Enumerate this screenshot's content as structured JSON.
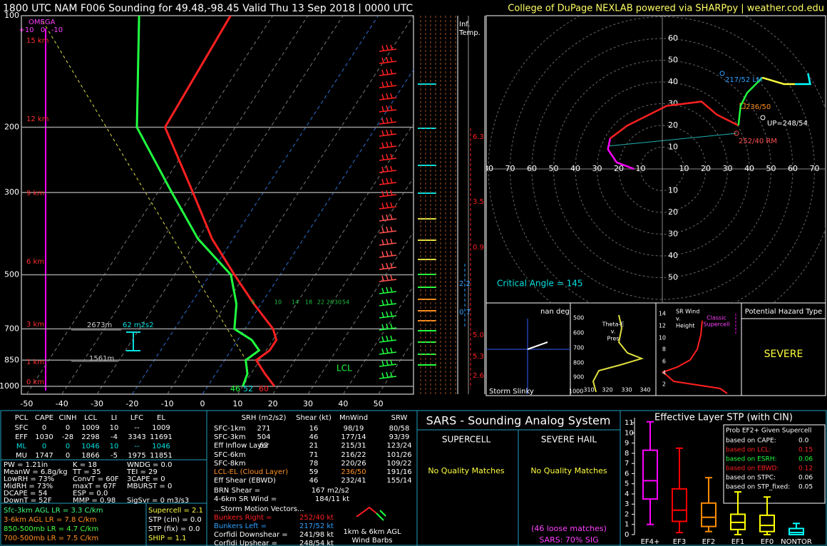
{
  "header": {
    "title": "1800 UTC NAM F006 Sounding for 49.48,-98.45 Valid  Thu 13 Sep 2018 | 0000 UTC",
    "credit": "College of DuPage NEXLAB powered via SHARPpy | weather.cod.edu"
  },
  "chart_data": [
    {
      "type": "skewt",
      "xlim": [
        -51.5,
        60
      ],
      "xticks": [
        -50,
        -40,
        -30,
        -20,
        -10,
        0,
        10,
        20,
        30,
        40,
        50
      ],
      "ylim": [
        100,
        1050
      ],
      "yticks": [
        100,
        200,
        300,
        500,
        700,
        850,
        1000
      ],
      "log_y": true,
      "pressure": [
        100,
        200,
        300,
        400,
        500,
        600,
        700,
        750,
        800,
        850,
        925,
        1000
      ],
      "series": [
        {
          "color": "#ff2020",
          "values": [
            -62,
            -60,
            -40,
            -26,
            -13,
            -2,
            8,
            11,
            11,
            9,
            14,
            19
          ]
        },
        {
          "color": "#20ff40",
          "values": [
            -88,
            -68,
            -46,
            -30,
            -14,
            -7,
            -3,
            4,
            8,
            6,
            9,
            10
          ]
        }
      ]
    },
    {
      "type": "hodograph",
      "rings": [
        10,
        20,
        30,
        40,
        50,
        60,
        70,
        80
      ],
      "segments": [
        {
          "color": "#ff00ff",
          "u": [
            -13,
            -21,
            -25,
            -24
          ],
          "v": [
            0,
            3,
            9,
            14
          ]
        },
        {
          "color": "#ff2020",
          "u": [
            -24,
            -16,
            2,
            18,
            25,
            35
          ],
          "v": [
            14,
            20,
            29,
            31,
            25,
            20
          ]
        },
        {
          "color": "#20ff40",
          "u": [
            35,
            36,
            39,
            46
          ],
          "v": [
            20,
            29,
            35,
            42
          ]
        },
        {
          "color": "#ffff40",
          "u": [
            46,
            56,
            61
          ],
          "v": [
            42,
            39,
            39
          ]
        },
        {
          "color": "#00ffff",
          "u": [
            61,
            68,
            67
          ],
          "v": [
            39,
            39,
            44
          ]
        }
      ]
    },
    {
      "type": "box",
      "title": "Effective Layer STP (with CIN)",
      "categories": [
        "EF4+",
        "EF3",
        "EF2",
        "EF1",
        "EF0",
        "NONTOR"
      ],
      "ylim": [
        0,
        11.5
      ],
      "yticks": [
        0,
        1,
        2,
        3,
        4,
        5,
        6,
        7,
        8,
        9,
        10,
        11
      ],
      "low": [
        1,
        0.2,
        0.3,
        0,
        0,
        0
      ],
      "q1": [
        3.5,
        1.3,
        0.8,
        0.5,
        0.3,
        0
      ],
      "median": [
        5.3,
        2.4,
        1.7,
        1.2,
        0.9,
        0.2
      ],
      "q3": [
        8.3,
        4.5,
        3.1,
        2,
        1.9,
        0.6
      ],
      "high": [
        11.1,
        8.5,
        5.6,
        4.2,
        3.7,
        1.1
      ],
      "colors": [
        "#ff00ff",
        "#ff0000",
        "#ff8c00",
        "#ffff00",
        "#ffff00",
        "#00ffff"
      ]
    }
  ],
  "skewt_labels": {
    "omega": [
      "OMEGA",
      "+10",
      "0",
      "-10"
    ],
    "heights": [
      "15 km",
      "12 km",
      "9 km",
      "6 km",
      "3 km",
      "1 km",
      "0 km"
    ],
    "inferred_temp": {
      "title": [
        "Inf.",
        "Temp."
      ],
      "values": [
        "6.3",
        "3.5",
        "0.9",
        "2.2",
        "0.7",
        "5.0",
        "5.3",
        "2.6"
      ]
    },
    "mixing_ratio": [
      "6",
      "10",
      "14",
      "18",
      "22",
      "26",
      "30",
      "54"
    ],
    "effective_layer": [
      "2673m",
      "62 m2s2",
      "1561m"
    ],
    "lcl": "LCL",
    "surface": [
      "46",
      "52",
      "60"
    ],
    "critical_angle": "Critical Angle = 145",
    "storm_motion": [
      "217/52 LM",
      "236/50",
      "UP=248/54",
      "252/40 RM"
    ]
  },
  "insets": {
    "slinky": {
      "angle": "nan deg",
      "title": "Storm Slinky"
    },
    "theta_e": {
      "title": [
        "Theta-E",
        "v.",
        "Pres"
      ],
      "pressure_labels": [
        "500",
        "600",
        "700",
        "800",
        "900",
        "1000"
      ],
      "theta_labels": [
        "310",
        "320",
        "330",
        "340"
      ]
    },
    "sr_wind": {
      "title": [
        "SR Wind",
        "v.",
        "Height"
      ],
      "height_labels": [
        "14",
        "12",
        "10",
        "8",
        "6",
        "4",
        "2"
      ],
      "note": [
        "Classic",
        "Supercell"
      ]
    },
    "hazard": {
      "title": "Potential Hazard Type",
      "value": "SEVERE"
    }
  },
  "thermo": {
    "header": [
      "PCL",
      "CAPE",
      "CINH",
      "LCL",
      "LI",
      "LFC",
      "EL"
    ],
    "rows": [
      [
        "SFC",
        "0",
        "0",
        "1009",
        "10",
        "--",
        "1009"
      ],
      [
        "EFF",
        "1030",
        "-28",
        "2298",
        "-4",
        "3343",
        "11691"
      ],
      [
        "ML",
        "0",
        "0",
        "1046",
        "10",
        "--",
        "1046"
      ],
      [
        "MU",
        "1747",
        "0",
        "1866",
        "-5",
        "1975",
        "11851"
      ]
    ],
    "indices": [
      [
        "PW = 1.21in",
        "K = 18",
        "WNDG = 0.0"
      ],
      [
        "MeanW = 6.8g/kg",
        "TT = 35",
        "TEI = 29"
      ],
      [
        "LowRH = 73%",
        "ConvT = 60F",
        "3CAPE = 0"
      ],
      [
        "MidRH = 73%",
        "maxT = 67F",
        "MBURST = 0"
      ],
      [
        "DCAPE = 54",
        "ESP = 0.0"
      ],
      [
        "DownT = 52F",
        "MMP = 0.98",
        "SigSvr = 0 m3/s3"
      ]
    ],
    "lapse_rates": [
      "Sfc-3km AGL LR = 3.3 C/km",
      "3-6km AGL LR = 7.8 C/km",
      "850-500mb LR = 4.7 C/km",
      "700-500mb LR = 7.5 C/km"
    ],
    "composites": [
      "Supercell = 2.1",
      "STP (cin) = 0.0",
      "STP (fix) = 0.0",
      "SHIP = 1.1"
    ]
  },
  "kinematics": {
    "header": [
      "SRH (m2/s2)",
      "Shear (kt)",
      "MnWind",
      "SRW"
    ],
    "rows": [
      [
        "SFC-1km",
        "271",
        "16",
        "98/19",
        "80/58"
      ],
      [
        "SFC-3km",
        "504",
        "46",
        "177/14",
        "93/39"
      ],
      [
        "Eff Inflow Layer",
        "62",
        "21",
        "215/31",
        "123/24"
      ],
      [
        "SFC-6km",
        null,
        "71",
        "216/22",
        "101/26"
      ],
      [
        "SFC-8km",
        null,
        "78",
        "220/26",
        "109/22"
      ],
      [
        "LCL-EL (Cloud Layer)",
        null,
        "59",
        "236/50",
        "191/16"
      ],
      [
        "Eff Shear (EBWD)",
        null,
        "46",
        "232/41",
        "155/14"
      ]
    ],
    "brn": [
      [
        "BRN Shear =",
        "167 m2/s2"
      ],
      [
        "4-6km SR Wind =",
        "184/11 kt"
      ]
    ],
    "storm_motion_title": "...Storm Motion Vectors...",
    "storm_motion": [
      [
        "Bunkers Right =",
        "252/40 kt"
      ],
      [
        "Bunkers Left =",
        "217/52 kt"
      ],
      [
        "Corfidi Downshear =",
        "241/98 kt"
      ],
      [
        "Corfidi Upshear =",
        "248/54 kt"
      ]
    ],
    "barb_caption": [
      "1km & 6km AGL",
      "Wind Barbs"
    ]
  },
  "sars": {
    "title": "SARS - Sounding Analog System",
    "supercell": {
      "header": "SUPERCELL",
      "result": "No Quality Matches"
    },
    "hail": {
      "header": "SEVERE HAIL",
      "result": "No Quality Matches",
      "loose": "(46 loose matches)",
      "sig": "SARS: 70% SIG"
    }
  },
  "prob_box": {
    "title": "Prob EF2+ Given Supercell",
    "rows": [
      [
        "based on CAPE:",
        "0.0"
      ],
      [
        "based on LCL:",
        "0.15"
      ],
      [
        "based on ESRH:",
        "0.06"
      ],
      [
        "based on EBWD:",
        "0.12"
      ],
      [
        "based on STPC:",
        "0.06"
      ],
      [
        "based on STP_fixed:",
        "0.05"
      ]
    ],
    "colors": [
      "#ffffff",
      "#ff2020",
      "#20ff40",
      "#ff2020",
      "#ffffff",
      "#ffffff"
    ]
  }
}
